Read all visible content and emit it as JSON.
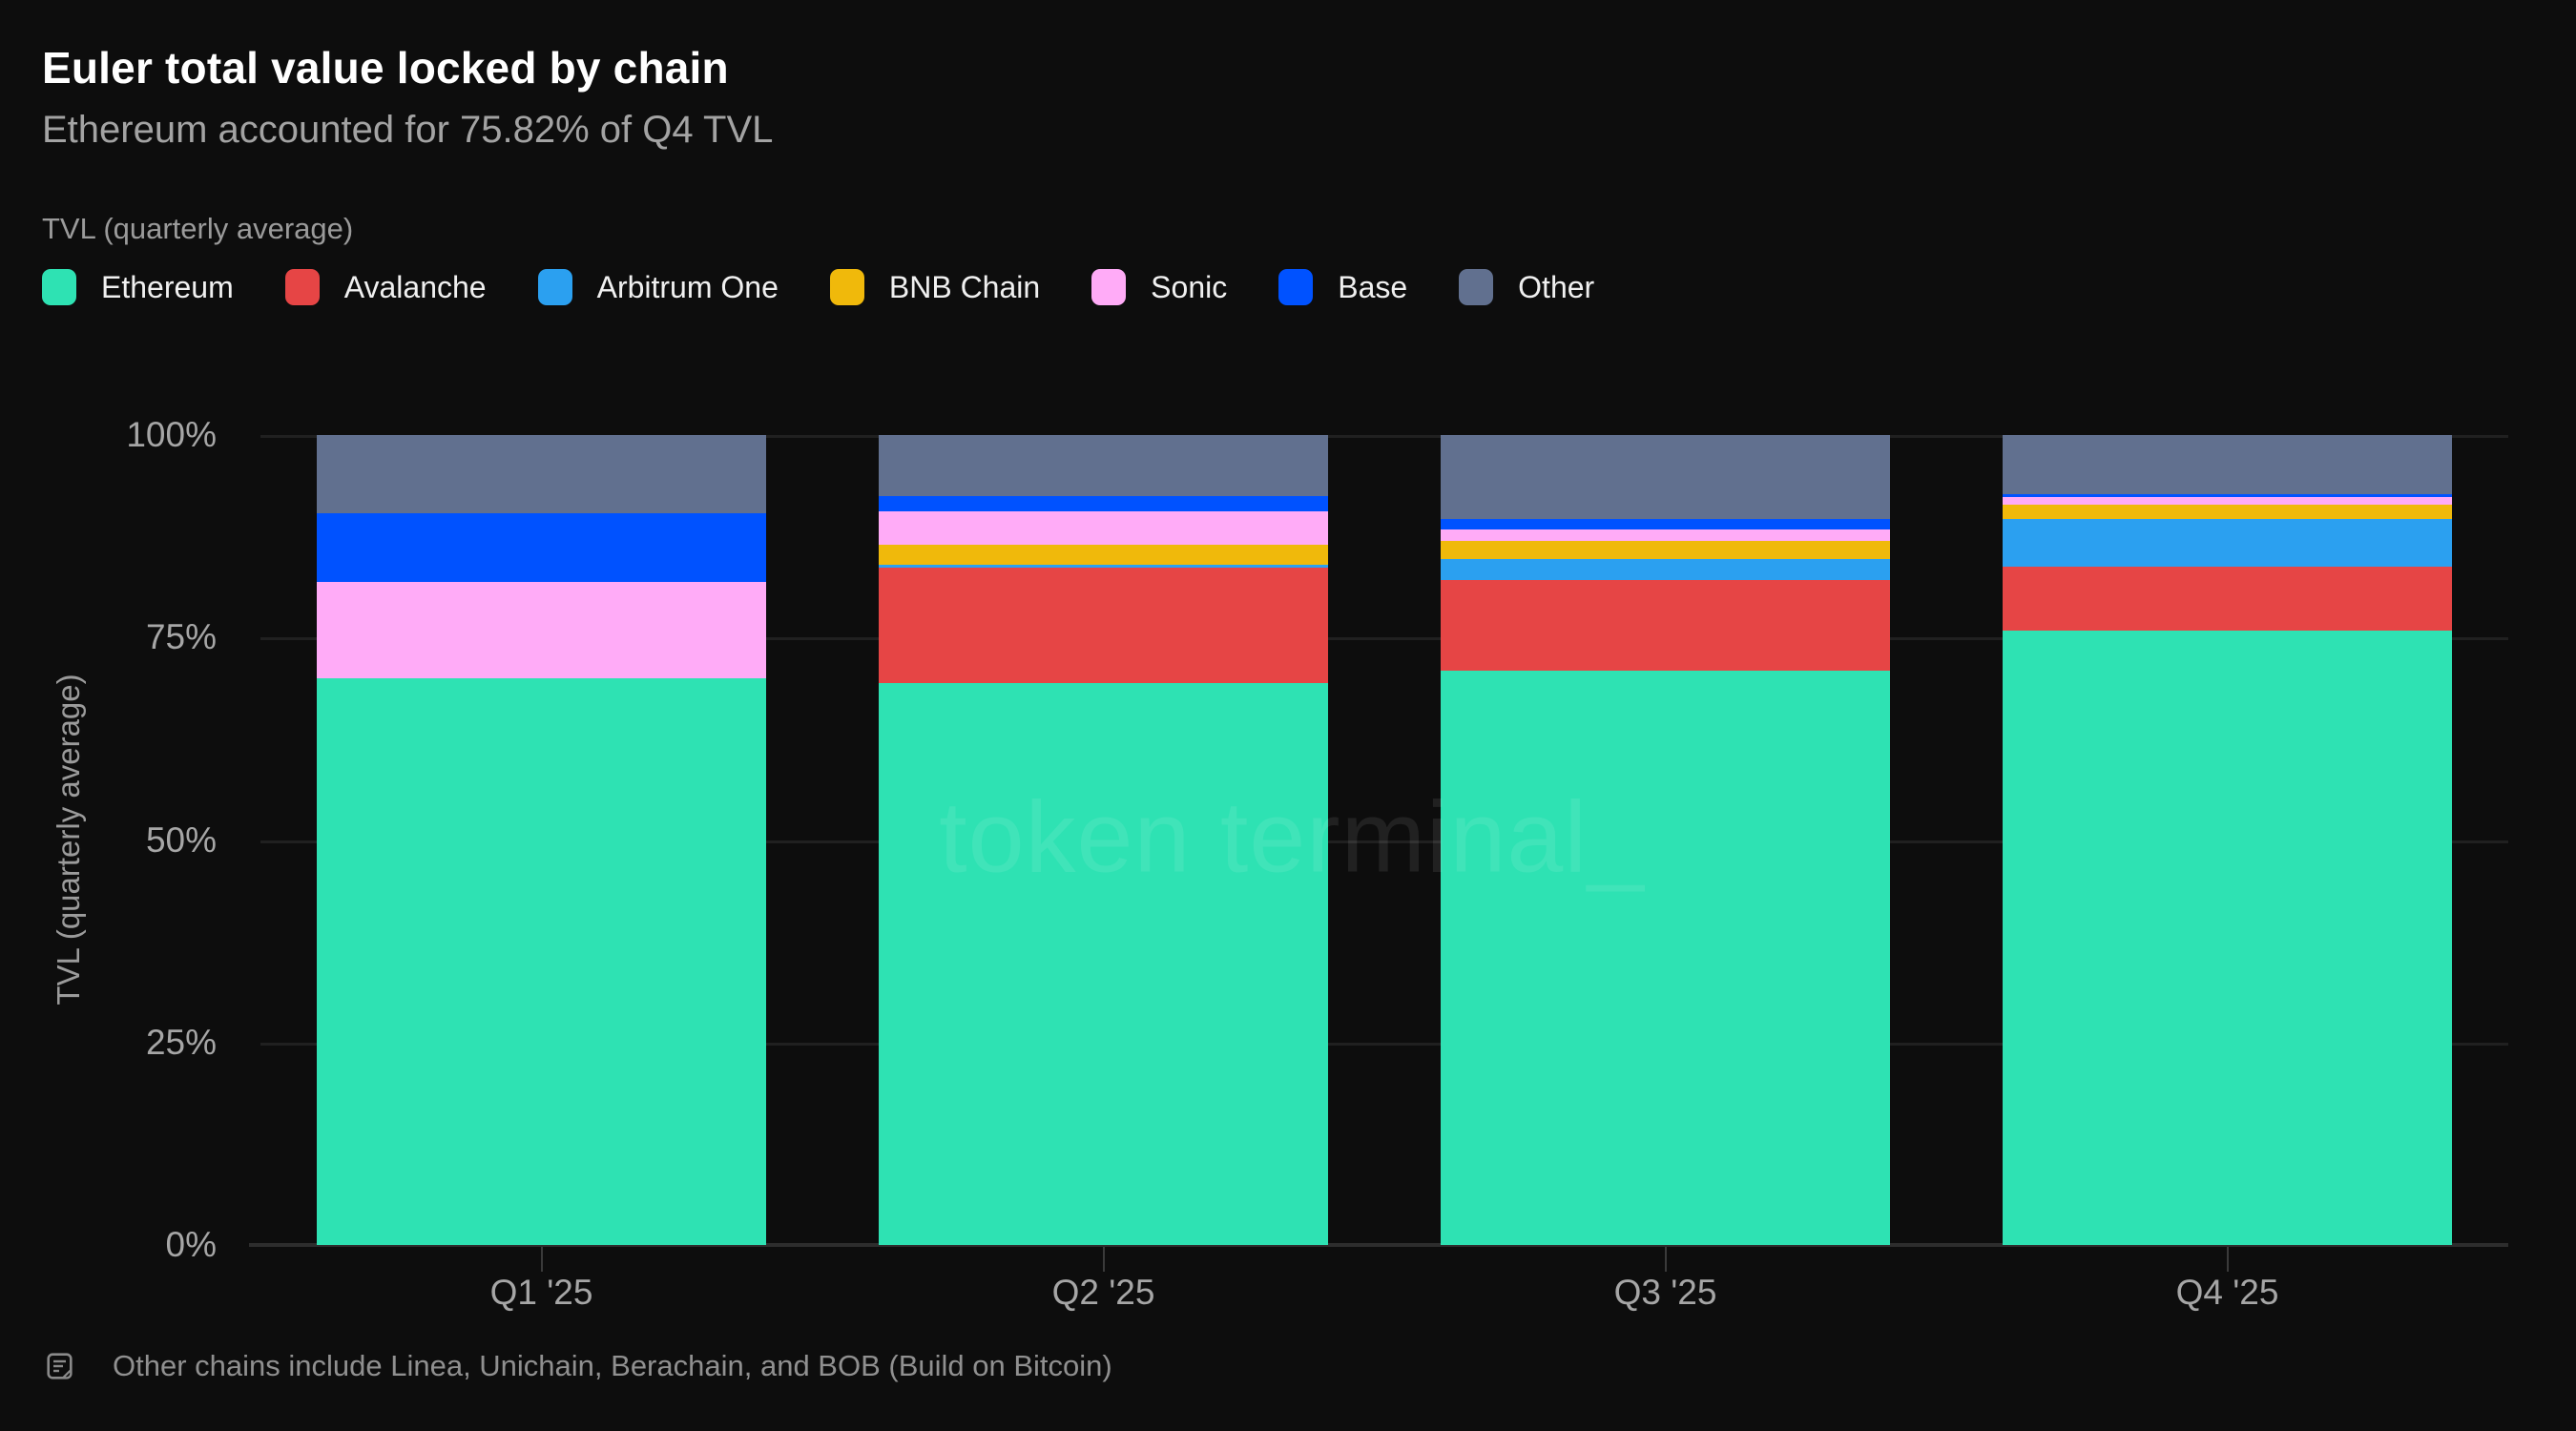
{
  "header": {
    "title": "Euler total value locked by chain",
    "subtitle": "Ethereum accounted for 75.82% of Q4 TVL"
  },
  "legend": {
    "title": "TVL (quarterly average)"
  },
  "y_axis": {
    "title": "TVL (quarterly average)",
    "ticks": [
      {
        "label": "100%",
        "value": 100
      },
      {
        "label": "75%",
        "value": 75
      },
      {
        "label": "50%",
        "value": 50
      },
      {
        "label": "25%",
        "value": 25
      },
      {
        "label": "0%",
        "value": 0
      }
    ]
  },
  "watermark": "token terminal_",
  "footnote": {
    "text": "Other chains include Linea, Unichain, Berachain, and BOB (Build on Bitcoin)",
    "icon": "note-icon"
  },
  "chart_data": {
    "type": "bar",
    "stacked": true,
    "unit": "percent",
    "title": "Euler total value locked by chain",
    "ylabel": "TVL (quarterly average)",
    "ylim": [
      0,
      100
    ],
    "grid": "horizontal",
    "legend_position": "top",
    "categories": [
      "Q1 '25",
      "Q2 '25",
      "Q3 '25",
      "Q4 '25"
    ],
    "series": [
      {
        "name": "Ethereum",
        "color": "#2ee2b3",
        "values": [
          70.0,
          69.4,
          70.9,
          75.82
        ]
      },
      {
        "name": "Avalanche",
        "color": "#e64545",
        "values": [
          0,
          14.2,
          11.2,
          7.9
        ]
      },
      {
        "name": "Arbitrum One",
        "color": "#2ba0f0",
        "values": [
          0,
          0.4,
          2.6,
          5.9
        ]
      },
      {
        "name": "BNB Chain",
        "color": "#f0b90b",
        "values": [
          0,
          2.4,
          2.2,
          1.8
        ]
      },
      {
        "name": "Sonic",
        "color": "#ffabf7",
        "values": [
          11.9,
          4.2,
          1.4,
          0.9
        ]
      },
      {
        "name": "Base",
        "color": "#0052ff",
        "values": [
          8.5,
          1.9,
          1.3,
          0.4
        ]
      },
      {
        "name": "Other",
        "color": "#61708f",
        "values": [
          9.6,
          7.5,
          10.4,
          7.3
        ]
      }
    ]
  }
}
